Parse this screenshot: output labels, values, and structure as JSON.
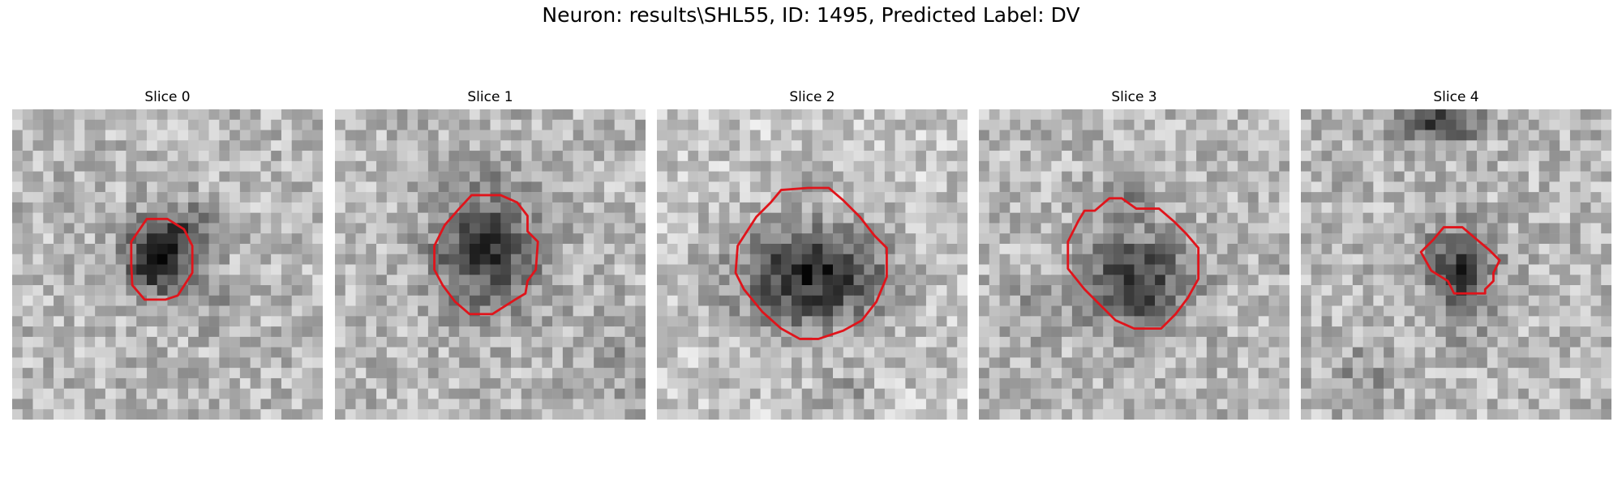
{
  "figure": {
    "title": "Neuron: results\\SHL55, ID: 1495, Predicted Label: DV",
    "outline_color": "#e0141b",
    "colormap": "grayscale",
    "panels": [
      {
        "label": "Slice 0"
      },
      {
        "label": "Slice 1"
      },
      {
        "label": "Slice 2"
      },
      {
        "label": "Slice 3"
      },
      {
        "label": "Slice 4"
      }
    ]
  }
}
